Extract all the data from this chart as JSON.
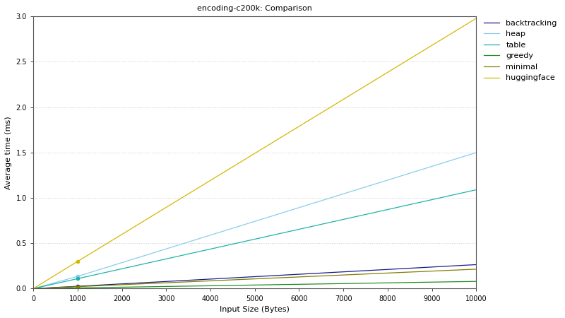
{
  "title": "encoding-c200k: Comparison",
  "xlabel": "Input Size (Bytes)",
  "ylabel": "Average time (ms)",
  "xlim": [
    0,
    10000
  ],
  "ylim": [
    0,
    3
  ],
  "yticks": [
    0,
    0.5,
    1.0,
    1.5,
    2.0,
    2.5,
    3.0
  ],
  "xticks": [
    0,
    1000,
    2000,
    3000,
    4000,
    5000,
    6000,
    7000,
    8000,
    9000,
    10000
  ],
  "series": [
    {
      "name": "backtracking",
      "color": "#1a1a8c",
      "x": [
        0,
        1000,
        10000
      ],
      "y": [
        0,
        0.026,
        0.265
      ],
      "has_dot": true,
      "dot_x": 1000,
      "dot_y": 0.026
    },
    {
      "name": "heap",
      "color": "#87ceeb",
      "x": [
        0,
        1000,
        10000
      ],
      "y": [
        0,
        0.135,
        1.5
      ],
      "has_dot": true,
      "dot_x": 1000,
      "dot_y": 0.135
    },
    {
      "name": "table",
      "color": "#20b2aa",
      "x": [
        0,
        1000,
        10000
      ],
      "y": [
        0,
        0.11,
        1.09
      ],
      "has_dot": true,
      "dot_x": 1000,
      "dot_y": 0.11
    },
    {
      "name": "greedy",
      "color": "#228b22",
      "x": [
        0,
        1000,
        10000
      ],
      "y": [
        0,
        0.008,
        0.08
      ],
      "has_dot": true,
      "dot_x": 1000,
      "dot_y": 0.008
    },
    {
      "name": "minimal",
      "color": "#808000",
      "x": [
        0,
        1000,
        10000
      ],
      "y": [
        0,
        0.022,
        0.215
      ],
      "has_dot": true,
      "dot_x": 1000,
      "dot_y": 0.022
    },
    {
      "name": "huggingface",
      "color": "#d4b800",
      "x": [
        0,
        1000,
        10000
      ],
      "y": [
        0,
        0.3,
        2.98
      ],
      "has_dot": true,
      "dot_x": 1000,
      "dot_y": 0.3
    }
  ],
  "background_color": "#ffffff",
  "fig_background_color": "#ffffff",
  "grid_color": "#cccccc",
  "title_fontsize": 8,
  "label_fontsize": 8,
  "tick_fontsize": 7,
  "legend_fontsize": 8
}
